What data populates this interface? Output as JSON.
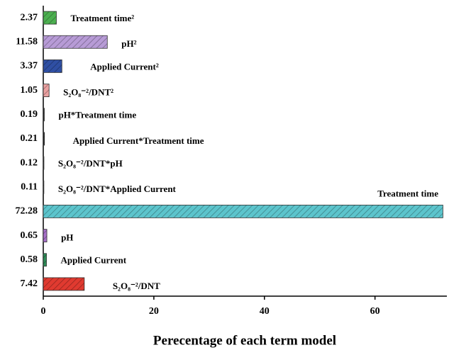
{
  "chart_data": {
    "type": "bar",
    "orientation": "horizontal",
    "xlabel": "Perecentage of each term model",
    "categories": [
      "Treatment time²",
      "pH²",
      "Applied Current²",
      "S₂O₈⁻²/DNT²",
      "pH*Treatment time",
      "Applied Current*Treatment time",
      "S₂O₈⁻²/DNT*pH",
      "S₂O₈⁻²/DNT*Applied Current",
      "Treatment time",
      "pH",
      "Applied Current",
      "S₂O₈⁻²/DNT"
    ],
    "values": [
      2.37,
      11.58,
      3.37,
      1.05,
      0.19,
      0.21,
      0.12,
      0.11,
      72.28,
      0.65,
      0.58,
      7.42
    ],
    "colors": [
      "#4caf50",
      "#b79bd6",
      "#2f4fa3",
      "#eaa1a1",
      "#222222",
      "#222222",
      "#222222",
      "#222222",
      "#5cc4cc",
      "#a66fc8",
      "#2e8b57",
      "#e03a30"
    ],
    "xlim": [
      0,
      73
    ],
    "xticks": [
      0,
      20,
      40,
      60
    ]
  }
}
